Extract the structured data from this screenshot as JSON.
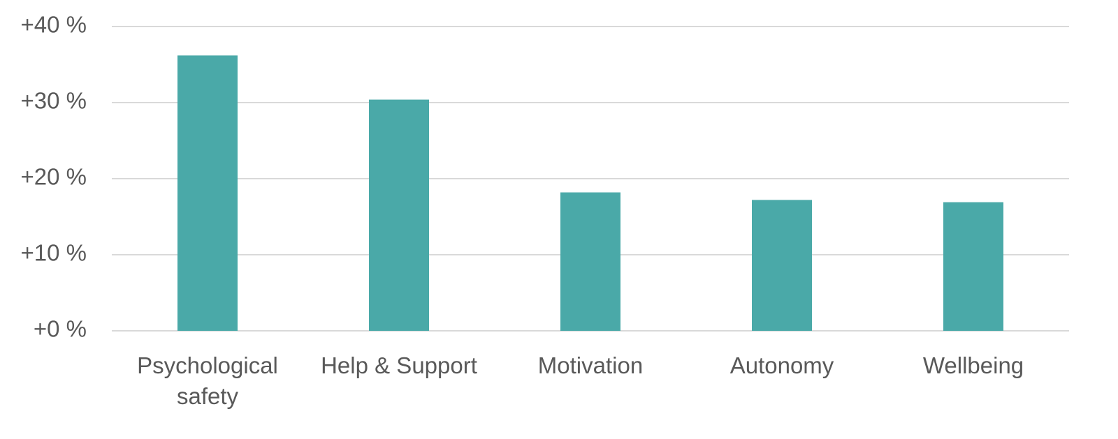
{
  "chart_data": {
    "type": "bar",
    "categories": [
      "Psychological safety",
      "Help & Support",
      "Motivation",
      "Autonomy",
      "Wellbeing"
    ],
    "values": [
      36.2,
      30.4,
      18.2,
      17.2,
      16.9
    ],
    "color": "#4aa9a8",
    "ylim": [
      0,
      40
    ],
    "yticks": [
      {
        "value": 0,
        "label": "+0 %"
      },
      {
        "value": 10,
        "label": "+10 %"
      },
      {
        "value": 20,
        "label": "+20 %"
      },
      {
        "value": 30,
        "label": "+30 %"
      },
      {
        "value": 40,
        "label": "+40 %"
      }
    ],
    "grid": true
  }
}
